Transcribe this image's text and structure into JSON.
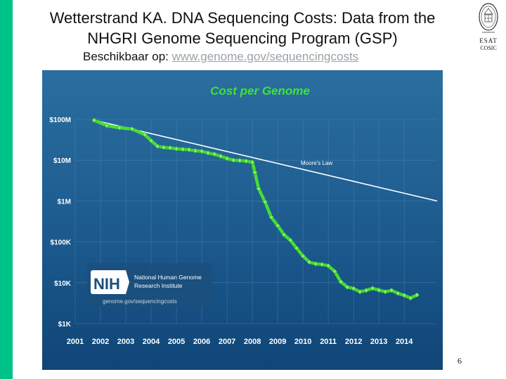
{
  "slide": {
    "title_line1": "Wetterstrand KA. DNA Sequencing Costs: Data from the",
    "title_line2": "NHGRI Genome Sequencing Program (GSP)",
    "source_prefix": "Beschikbaar op: ",
    "source_link": "www.genome.gov/sequencingcosts",
    "logo_line1": "ESAT",
    "logo_line2": "COSIC",
    "page_number": "6",
    "accent_color": "#00c389"
  },
  "chart_data": {
    "type": "line",
    "title": "Cost per Genome",
    "y_scale": "log",
    "ylim": [
      1000,
      100000000
    ],
    "yticks": [
      {
        "value": 100000000,
        "label": "$100M"
      },
      {
        "value": 10000000,
        "label": "$10M"
      },
      {
        "value": 1000000,
        "label": "$1M"
      },
      {
        "value": 100000,
        "label": "$100K"
      },
      {
        "value": 10000,
        "label": "$10K"
      },
      {
        "value": 1000,
        "label": "$1K"
      }
    ],
    "xlim": [
      2001,
      2015.3
    ],
    "xticks": [
      2001,
      2002,
      2003,
      2004,
      2005,
      2006,
      2007,
      2008,
      2009,
      2010,
      2011,
      2012,
      2013,
      2014
    ],
    "grid": true,
    "series": [
      {
        "color": "#44e030",
        "points": [
          [
            2001.75,
            95000000
          ],
          [
            2002.25,
            70000000
          ],
          [
            2002.75,
            62000000
          ],
          [
            2003.25,
            58000000
          ],
          [
            2003.75,
            42000000
          ],
          [
            2004.0,
            30000000
          ],
          [
            2004.25,
            22000000
          ],
          [
            2004.5,
            20500000
          ],
          [
            2004.75,
            20000000
          ],
          [
            2005.0,
            19000000
          ],
          [
            2005.25,
            18500000
          ],
          [
            2005.5,
            18000000
          ],
          [
            2005.75,
            17000000
          ],
          [
            2006.0,
            16500000
          ],
          [
            2006.25,
            15000000
          ],
          [
            2006.5,
            14000000
          ],
          [
            2006.75,
            12500000
          ],
          [
            2007.0,
            11000000
          ],
          [
            2007.25,
            10000000
          ],
          [
            2007.5,
            9800000
          ],
          [
            2007.75,
            9500000
          ],
          [
            2008.0,
            8900000
          ],
          [
            2008.1,
            5000000
          ],
          [
            2008.25,
            2000000
          ],
          [
            2008.5,
            950000
          ],
          [
            2008.75,
            400000
          ],
          [
            2009.0,
            250000
          ],
          [
            2009.25,
            150000
          ],
          [
            2009.5,
            110000
          ],
          [
            2009.75,
            70000
          ],
          [
            2010.0,
            45000
          ],
          [
            2010.25,
            32000
          ],
          [
            2010.5,
            29000
          ],
          [
            2010.75,
            28000
          ],
          [
            2011.0,
            26000
          ],
          [
            2011.25,
            19000
          ],
          [
            2011.5,
            10500
          ],
          [
            2011.75,
            7800
          ],
          [
            2012.0,
            7200
          ],
          [
            2012.25,
            6000
          ],
          [
            2012.5,
            6500
          ],
          [
            2012.75,
            7300
          ],
          [
            2013.0,
            6600
          ],
          [
            2013.25,
            6000
          ],
          [
            2013.5,
            6500
          ],
          [
            2013.75,
            5500
          ],
          [
            2014.0,
            4900
          ],
          [
            2014.25,
            4200
          ],
          [
            2014.5,
            5000
          ]
        ]
      },
      {
        "name": "Moore's Law",
        "color": "#ffffff",
        "points": [
          [
            2001.75,
            95000000
          ],
          [
            2015.3,
            1000000
          ]
        ]
      }
    ],
    "inset": {
      "logo_text": "NIH",
      "institute_line1": "National Human Genome",
      "institute_line2": "Research Institute",
      "url": "genome.gov/sequencingcosts"
    }
  }
}
